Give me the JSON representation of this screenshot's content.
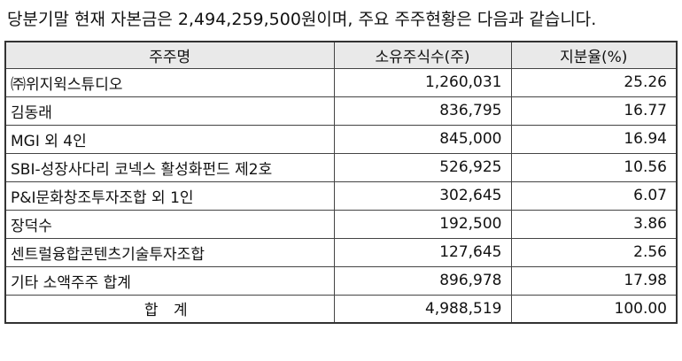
{
  "intro_text": "당분기말 현재 자본금은 2,494,259,500원이며, 주요 주주현황은 다음과 같습니다.",
  "table": {
    "headers": {
      "name": "주주명",
      "shares": "소유주식수(주)",
      "ratio": "지분율(%)"
    },
    "rows": [
      {
        "name": "㈜위지윅스튜디오",
        "shares": "1,260,031",
        "ratio": "25.26"
      },
      {
        "name": "김동래",
        "shares": "836,795",
        "ratio": "16.77"
      },
      {
        "name": "MGI 외 4인",
        "shares": "845,000",
        "ratio": "16.94"
      },
      {
        "name": "SBI-성장사다리 코넥스 활성화펀드 제2호",
        "shares": "526,925",
        "ratio": "10.56"
      },
      {
        "name": "P&I문화창조투자조합 외 1인",
        "shares": "302,645",
        "ratio": "6.07"
      },
      {
        "name": "장덕수",
        "shares": "192,500",
        "ratio": "3.86"
      },
      {
        "name": "센트럴융합콘텐츠기술투자조합",
        "shares": "127,645",
        "ratio": "2.56"
      },
      {
        "name": "기타 소액주주 합계",
        "shares": "896,978",
        "ratio": "17.98"
      }
    ],
    "total": {
      "name": "합 계",
      "shares": "4,988,519",
      "ratio": "100.00"
    }
  }
}
